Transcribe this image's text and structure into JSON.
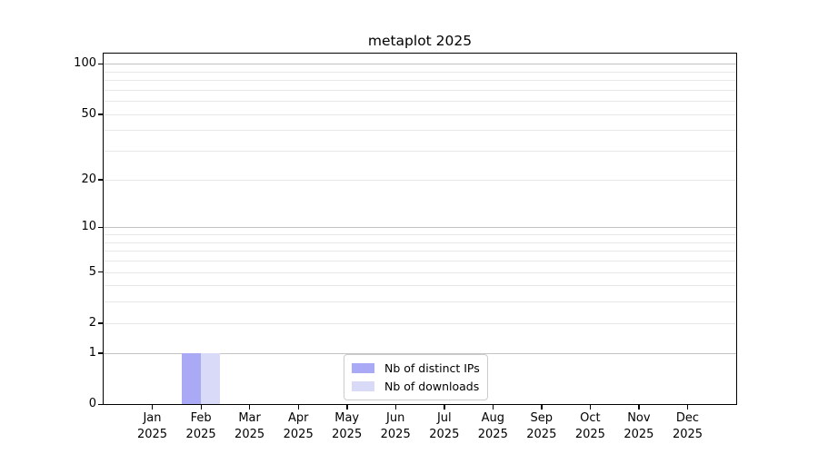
{
  "chart_data": {
    "type": "bar",
    "title": "metaplot 2025",
    "yscale": "log1p",
    "ylim": [
      0,
      115
    ],
    "grid": "y",
    "legend_position": "lower center",
    "y_major_ticks": [
      0,
      1,
      2,
      5,
      10,
      20,
      50,
      100
    ],
    "y_major_gridlines": [
      1,
      10,
      100
    ],
    "y_minor_gridlines": [
      2,
      3,
      4,
      5,
      6,
      7,
      8,
      9,
      20,
      30,
      40,
      50,
      60,
      70,
      80,
      90
    ],
    "categories": [
      {
        "month": "Jan",
        "year": "2025"
      },
      {
        "month": "Feb",
        "year": "2025"
      },
      {
        "month": "Mar",
        "year": "2025"
      },
      {
        "month": "Apr",
        "year": "2025"
      },
      {
        "month": "May",
        "year": "2025"
      },
      {
        "month": "Jun",
        "year": "2025"
      },
      {
        "month": "Jul",
        "year": "2025"
      },
      {
        "month": "Aug",
        "year": "2025"
      },
      {
        "month": "Sep",
        "year": "2025"
      },
      {
        "month": "Oct",
        "year": "2025"
      },
      {
        "month": "Nov",
        "year": "2025"
      },
      {
        "month": "Dec",
        "year": "2025"
      }
    ],
    "series": [
      {
        "name": "Nb of distinct IPs",
        "color": "#a9a9f5",
        "values": [
          0,
          1,
          0,
          0,
          0,
          0,
          0,
          0,
          0,
          0,
          0,
          0
        ]
      },
      {
        "name": "Nb of downloads",
        "color": "#d9d9f8",
        "values": [
          0,
          1,
          0,
          0,
          0,
          0,
          0,
          0,
          0,
          0,
          0,
          0
        ]
      }
    ],
    "colors": {
      "grid_major": "#c3c3c3",
      "grid_minor": "#e8e8e8",
      "axis": "#000000"
    }
  }
}
